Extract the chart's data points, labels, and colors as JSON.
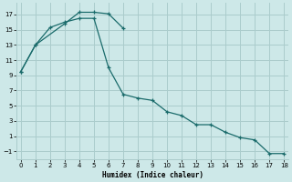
{
  "xlabel": "Humidex (Indice chaleur)",
  "background_color": "#cde8e8",
  "grid_color": "#aacccc",
  "line_color": "#1a6b6b",
  "line1_x": [
    0,
    1,
    3,
    4,
    5,
    6,
    7
  ],
  "line1_y": [
    9.5,
    13.0,
    15.8,
    17.3,
    17.3,
    17.1,
    15.2
  ],
  "line2_x": [
    0,
    1,
    2,
    3,
    4,
    5,
    6,
    7,
    8,
    9,
    10,
    11,
    12,
    13,
    14,
    15,
    16,
    17,
    18
  ],
  "line2_y": [
    9.5,
    13.0,
    15.3,
    16.0,
    16.5,
    16.5,
    10.0,
    6.5,
    6.0,
    5.7,
    4.2,
    3.7,
    2.5,
    2.5,
    1.5,
    0.8,
    0.5,
    -1.3,
    -1.3
  ],
  "xlim": [
    -0.3,
    18.3
  ],
  "ylim": [
    -2,
    18.5
  ],
  "xticks": [
    0,
    1,
    2,
    3,
    4,
    5,
    6,
    7,
    8,
    9,
    10,
    11,
    12,
    13,
    14,
    15,
    16,
    17,
    18
  ],
  "yticks": [
    -1,
    1,
    3,
    5,
    7,
    9,
    11,
    13,
    15,
    17
  ]
}
